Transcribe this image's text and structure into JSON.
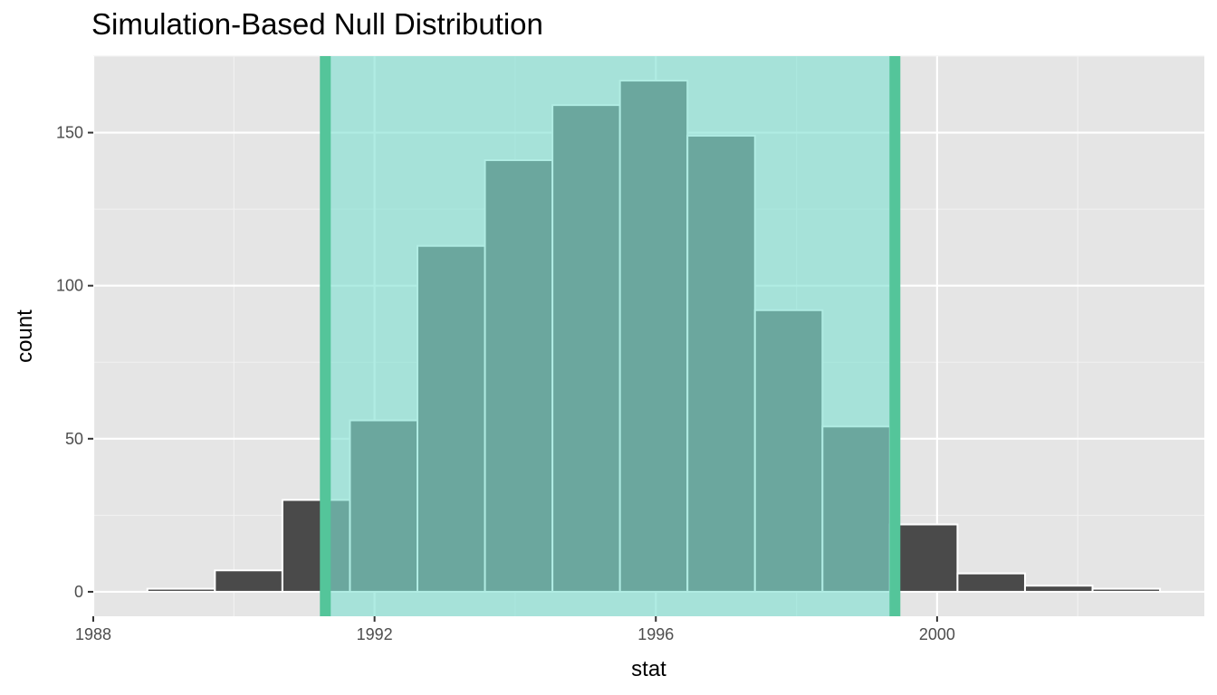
{
  "chart_data": {
    "type": "bar",
    "title": "Simulation-Based Null Distribution",
    "xlabel": "stat",
    "ylabel": "count",
    "xlim": [
      1988,
      2003.8
    ],
    "ylim": [
      -8,
      175
    ],
    "x_ticks": [
      1988,
      1992,
      1996,
      2000
    ],
    "y_ticks": [
      0,
      50,
      100,
      150
    ],
    "grid": true,
    "bin_width": 0.96,
    "bins": [
      {
        "center": 1989.25,
        "count": 1
      },
      {
        "center": 1990.21,
        "count": 7
      },
      {
        "center": 1991.17,
        "count": 30
      },
      {
        "center": 1992.13,
        "count": 56
      },
      {
        "center": 1993.09,
        "count": 113
      },
      {
        "center": 1994.05,
        "count": 141
      },
      {
        "center": 1995.01,
        "count": 159
      },
      {
        "center": 1995.97,
        "count": 167
      },
      {
        "center": 1996.93,
        "count": 149
      },
      {
        "center": 1997.89,
        "count": 92
      },
      {
        "center": 1998.85,
        "count": 54
      },
      {
        "center": 1999.81,
        "count": 22
      },
      {
        "center": 2000.77,
        "count": 6
      },
      {
        "center": 2001.73,
        "count": 2
      },
      {
        "center": 2002.69,
        "count": 1
      }
    ],
    "interval": {
      "lower": 1991.3,
      "upper": 1999.4
    },
    "colors": {
      "bar_fill": "#4a4a4a",
      "bar_border": "#ffffff",
      "shade_fill": "#7fe0d2",
      "interval_line": "#54c59a",
      "panel_bg": "#e5e5e5",
      "grid_major": "#ffffff",
      "grid_minor": "#f2f2f2"
    }
  }
}
